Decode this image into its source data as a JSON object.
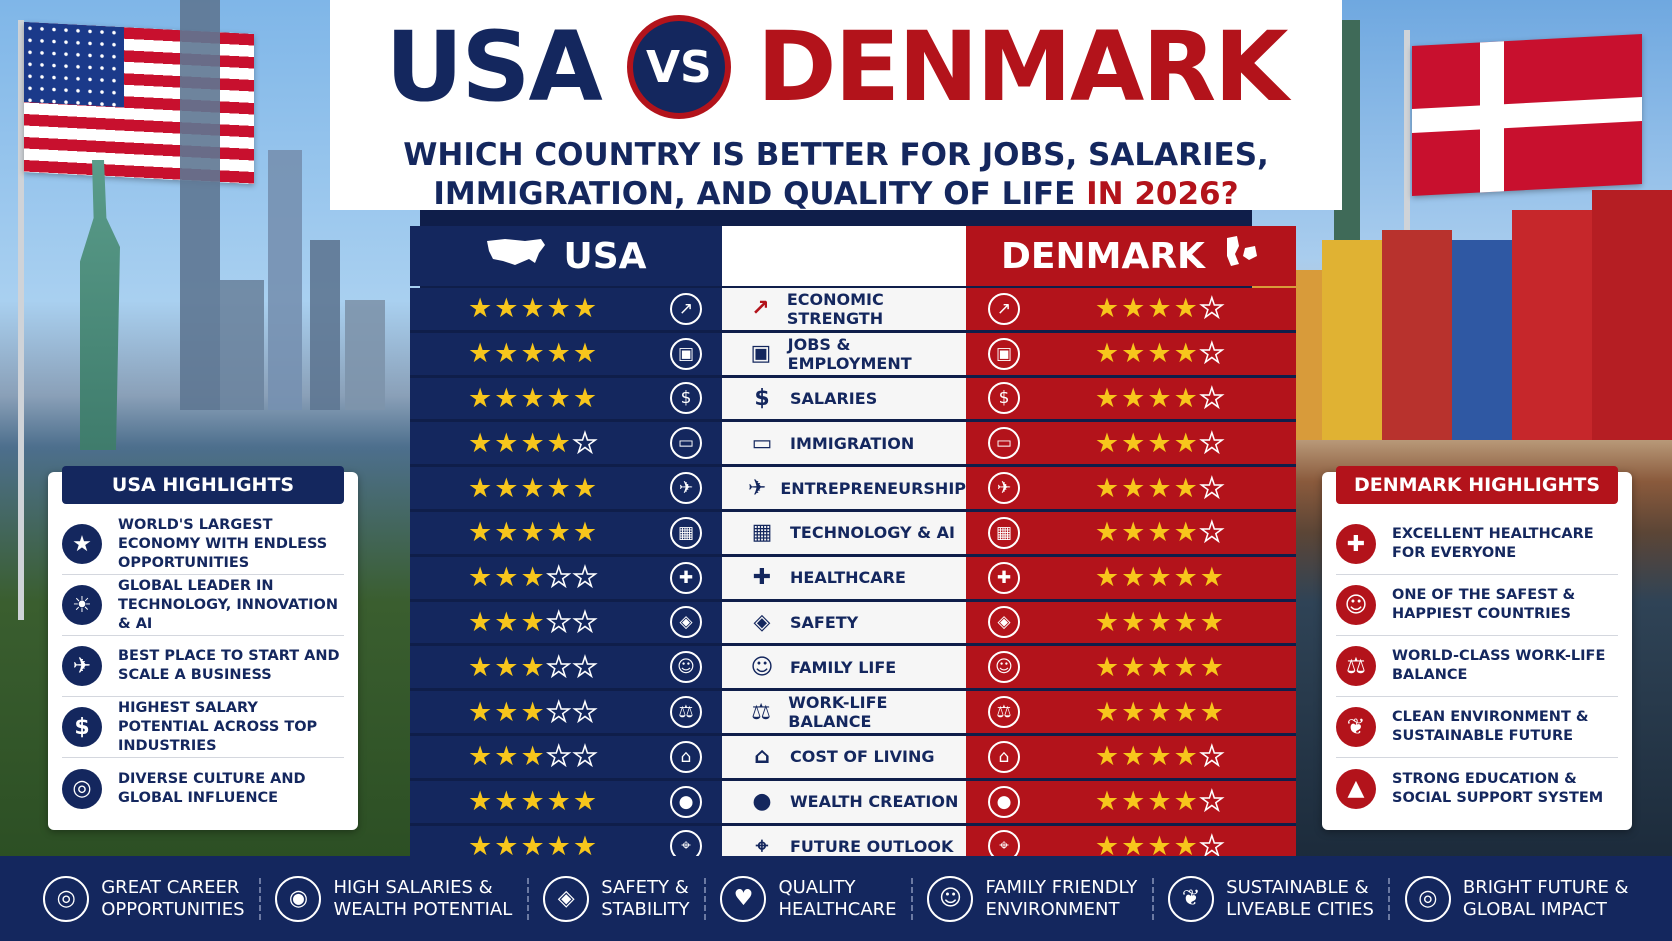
{
  "title": {
    "left": "USA",
    "vs": "VS",
    "right": "DENMARK"
  },
  "subtitle": {
    "line1": "WHICH COUNTRY IS BETTER FOR JOBS, SALARIES,",
    "line2_main": "IMMIGRATION, AND QUALITY OF LIFE ",
    "line2_highlight": "IN 2026?"
  },
  "columns": {
    "usa": "USA",
    "denmark": "DENMARK"
  },
  "colors": {
    "navy": "#14275e",
    "red": "#b3131b",
    "star": "#f7c61c"
  },
  "categories": [
    {
      "label": "ECONOMIC STRENGTH",
      "usa": 5,
      "denmark": 4,
      "icon": "chart-icon"
    },
    {
      "label": "JOBS & EMPLOYMENT",
      "usa": 5,
      "denmark": 4,
      "icon": "briefcase-icon"
    },
    {
      "label": "SALARIES",
      "usa": 5,
      "denmark": 4,
      "icon": "dollar-icon"
    },
    {
      "label": "IMMIGRATION",
      "usa": 4,
      "denmark": 4,
      "icon": "passport-icon"
    },
    {
      "label": "ENTREPRENEURSHIP",
      "usa": 5,
      "denmark": 4,
      "icon": "rocket-icon"
    },
    {
      "label": "TECHNOLOGY & AI",
      "usa": 5,
      "denmark": 4,
      "icon": "chip-icon"
    },
    {
      "label": "HEALTHCARE",
      "usa": 3,
      "denmark": 5,
      "icon": "health-shield-icon"
    },
    {
      "label": "SAFETY",
      "usa": 3,
      "denmark": 5,
      "icon": "safety-shield-icon"
    },
    {
      "label": "FAMILY LIFE",
      "usa": 3,
      "denmark": 5,
      "icon": "family-icon"
    },
    {
      "label": "WORK-LIFE BALANCE",
      "usa": 3,
      "denmark": 5,
      "icon": "scales-icon"
    },
    {
      "label": "COST OF LIVING",
      "usa": 3,
      "denmark": 4,
      "icon": "house-icon"
    },
    {
      "label": "WEALTH CREATION",
      "usa": 5,
      "denmark": 4,
      "icon": "money-bag-icon"
    },
    {
      "label": "FUTURE OUTLOOK",
      "usa": 5,
      "denmark": 4,
      "icon": "telescope-icon"
    }
  ],
  "usa_highlights": {
    "title": "USA HIGHLIGHTS",
    "items": [
      {
        "text": "WORLD'S LARGEST ECONOMY WITH ENDLESS OPPORTUNITIES",
        "icon": "star-icon"
      },
      {
        "text": "GLOBAL LEADER IN TECHNOLOGY, INNOVATION & AI",
        "icon": "lightbulb-icon"
      },
      {
        "text": "BEST PLACE TO START AND SCALE A BUSINESS",
        "icon": "rocket-icon"
      },
      {
        "text": "HIGHEST SALARY POTENTIAL ACROSS TOP INDUSTRIES",
        "icon": "dollar-icon"
      },
      {
        "text": "DIVERSE CULTURE AND GLOBAL INFLUENCE",
        "icon": "globe-icon"
      }
    ]
  },
  "denmark_highlights": {
    "title": "DENMARK HIGHLIGHTS",
    "items": [
      {
        "text": "EXCELLENT HEALTHCARE FOR EVERYONE",
        "icon": "health-shield-icon"
      },
      {
        "text": "ONE OF THE SAFEST & HAPPIEST COUNTRIES",
        "icon": "people-icon"
      },
      {
        "text": "WORLD-CLASS WORK-LIFE BALANCE",
        "icon": "scales-icon"
      },
      {
        "text": "CLEAN ENVIRONMENT & SUSTAINABLE FUTURE",
        "icon": "leaf-icon"
      },
      {
        "text": "STRONG EDUCATION & SOCIAL SUPPORT SYSTEM",
        "icon": "graduation-cap-icon"
      }
    ]
  },
  "footer": [
    {
      "label": "GREAT CAREER\nOPPORTUNITIES",
      "icon": "target-icon"
    },
    {
      "label": "HIGH SALARIES &\nWEALTH POTENTIAL",
      "icon": "coins-icon"
    },
    {
      "label": "SAFETY &\nSTABILITY",
      "icon": "shield-icon"
    },
    {
      "label": "QUALITY\nHEALTHCARE",
      "icon": "heart-icon"
    },
    {
      "label": "FAMILY FRIENDLY\nENVIRONMENT",
      "icon": "family-icon"
    },
    {
      "label": "SUSTAINABLE &\nLIVEABLE CITIES",
      "icon": "leaf-icon"
    },
    {
      "label": "BRIGHT FUTURE &\nGLOBAL IMPACT",
      "icon": "globe-icon"
    }
  ]
}
